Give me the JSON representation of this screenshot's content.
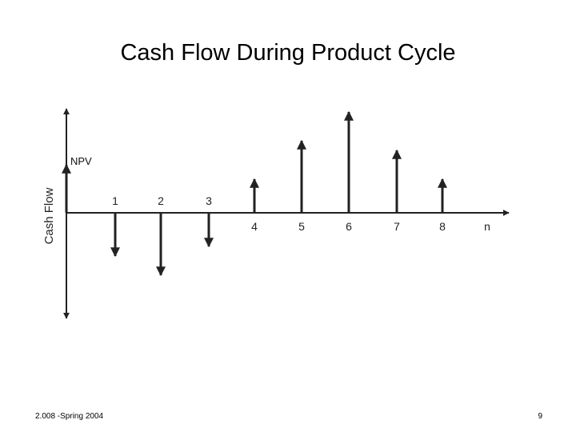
{
  "slide": {
    "title": "Cash Flow During Product Cycle",
    "footer_left": "2.008 -Spring 2004",
    "page_number": "9"
  },
  "diagram": {
    "y_axis_label": "Cash Flow",
    "npv_label": "NPV",
    "period_labels": [
      "1",
      "2",
      "3",
      "4",
      "5",
      "6",
      "7",
      "8",
      "n"
    ],
    "colors": {
      "ink": "#222222"
    }
  },
  "chart_data": {
    "type": "bar",
    "categories": [
      "NPV",
      "1",
      "2",
      "3",
      "4",
      "5",
      "6",
      "7",
      "8"
    ],
    "values": [
      1.0,
      -0.9,
      -1.3,
      -0.7,
      0.7,
      1.5,
      2.1,
      1.3,
      0.7
    ],
    "title": "Cash Flow During Product Cycle",
    "ylabel": "Cash Flow",
    "xlabel": "",
    "grid": false
  }
}
